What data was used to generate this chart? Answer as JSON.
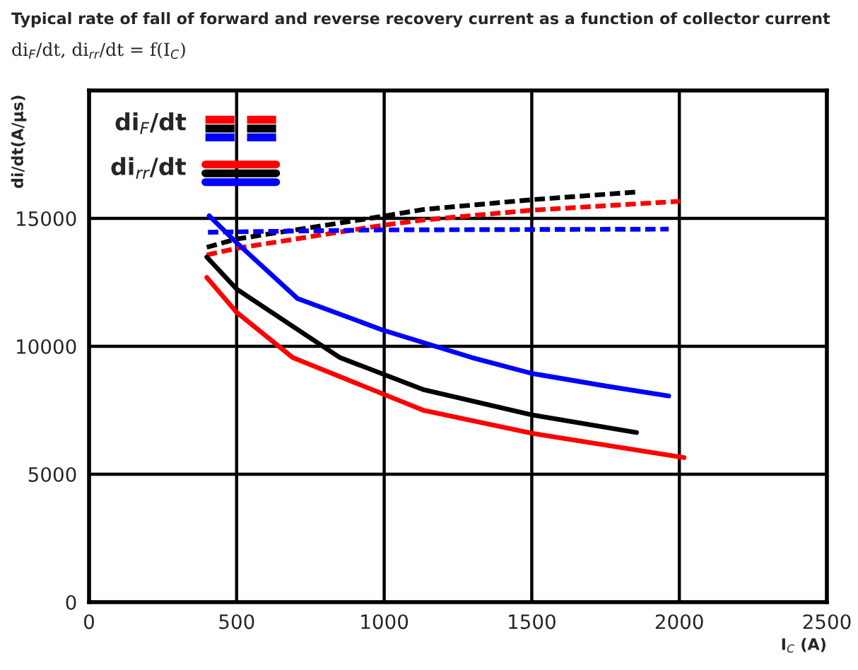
{
  "chart_data": {
    "type": "line",
    "title": "Typical rate of fall of forward and reverse recovery current as a function of collector current",
    "subtitle": "di$_{F}$/dt, di$_{rr}$/dt = f(I$_{C}$)",
    "xlabel": "I$_{C}$ (A)",
    "ylabel": "di/dt(A/µs)",
    "xlim": [
      0,
      2500
    ],
    "xticks": [
      0,
      500,
      1000,
      1500,
      2000,
      2500
    ],
    "ylim": [
      0,
      20000
    ],
    "yticks": [
      0,
      5000,
      10000,
      15000,
      {
        "value": 20000,
        "label": null
      }
    ],
    "grid": true,
    "legend": "top left",
    "marker": "none",
    "series": [
      {
        "name": "di$_{F}$/dt",
        "color": "#ff0000",
        "line_style": "dashed",
        "x": [
          399,
          500,
          994,
          1135,
          1500,
          2003
        ],
        "values": [
          13570,
          13830,
          14730,
          14940,
          15320,
          15670
        ]
      },
      {
        "color": "#000000",
        "line_style": "dashed",
        "x": [
          399,
          498,
          994,
          1135,
          1500,
          1855
        ],
        "values": [
          13870,
          14190,
          15080,
          15350,
          15730,
          16030
        ]
      },
      {
        "color": "#0000ff",
        "line_style": "dashed",
        "x": [
          403,
          994,
          1964
        ],
        "values": [
          14460,
          14550,
          14580
        ]
      },
      {
        "name": "di$_{rr}$/dt",
        "color": "#ff0000",
        "line_style": "solid",
        "x": [
          399,
          500,
          690,
          1135,
          1500,
          2016
        ],
        "values": [
          12690,
          11330,
          9560,
          7490,
          6600,
          5650
        ]
      },
      {
        "color": "#000000",
        "line_style": "solid",
        "x": [
          399,
          500,
          850,
          1135,
          1500,
          1855
        ],
        "values": [
          13490,
          12240,
          9560,
          8300,
          7320,
          6630
        ]
      },
      {
        "color": "#0000ff",
        "line_style": "solid",
        "x": [
          407,
          500,
          706,
          994,
          1297,
          1500,
          1750,
          1964
        ],
        "values": [
          15100,
          14050,
          11870,
          10640,
          9560,
          8940,
          8450,
          8060
        ]
      }
    ]
  }
}
